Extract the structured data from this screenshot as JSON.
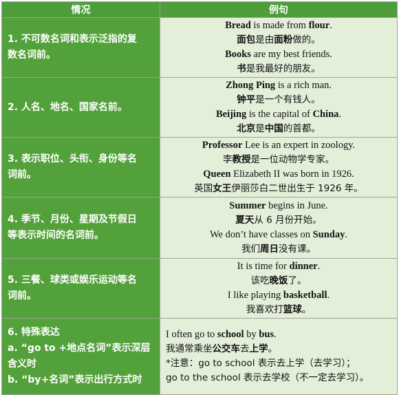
{
  "header": {
    "situation": "情况",
    "examples": "例句"
  },
  "rows": [
    {
      "situation": [
        "1. 不可数名词和表示泛指的复",
        "数名词前。"
      ],
      "lines": [
        [
          {
            "t": "Bread",
            "b": true
          },
          {
            "t": " is made from "
          },
          {
            "t": "flour",
            "b": true
          },
          {
            "t": "."
          }
        ],
        [
          {
            "t": "面包",
            "b": true
          },
          {
            "t": "是由"
          },
          {
            "t": "面粉",
            "b": true
          },
          {
            "t": "做的。"
          }
        ],
        [
          {
            "t": "Books",
            "b": true
          },
          {
            "t": " are my best friends."
          }
        ],
        [
          {
            "t": "书",
            "b": true
          },
          {
            "t": "是我最好的朋友。"
          }
        ]
      ]
    },
    {
      "situation": [
        "2. 人名、地名、国家名前。"
      ],
      "lines": [
        [
          {
            "t": "Zhong Ping",
            "b": true
          },
          {
            "t": " is a rich man."
          }
        ],
        [
          {
            "t": "钟平",
            "b": true
          },
          {
            "t": "是一个有钱人。"
          }
        ],
        [
          {
            "t": "Beijing",
            "b": true
          },
          {
            "t": " is the capital of "
          },
          {
            "t": "China",
            "b": true
          },
          {
            "t": "."
          }
        ],
        [
          {
            "t": "北京",
            "b": true
          },
          {
            "t": "是"
          },
          {
            "t": "中国",
            "b": true
          },
          {
            "t": "的首都。"
          }
        ]
      ]
    },
    {
      "situation": [
        "3. 表示职位、头衔、身份等名",
        "词前。"
      ],
      "lines": [
        [
          {
            "t": "Professor",
            "b": true
          },
          {
            "t": " Lee is an expert in zoology."
          }
        ],
        [
          {
            "t": "李"
          },
          {
            "t": "教授",
            "b": true
          },
          {
            "t": "是一位动物学专家。"
          }
        ],
        [
          {
            "t": "Queen",
            "b": true
          },
          {
            "t": " Elizabeth II was born in 1926."
          }
        ],
        [
          {
            "t": "英国"
          },
          {
            "t": "女王",
            "b": true
          },
          {
            "t": "伊丽莎白二世出生于 1926 年。"
          }
        ]
      ]
    },
    {
      "situation": [
        "4. 季节、月份、星期及节假日",
        "等表示时间的名词前。"
      ],
      "lines": [
        [
          {
            "t": "Summer",
            "b": true
          },
          {
            "t": " begins in June."
          }
        ],
        [
          {
            "t": "夏天",
            "b": true
          },
          {
            "t": "从 6 月份开始。"
          }
        ],
        [
          {
            "t": "We don’t have classes on "
          },
          {
            "t": "Sunday",
            "b": true
          },
          {
            "t": "."
          }
        ],
        [
          {
            "t": "我们"
          },
          {
            "t": "周日",
            "b": true
          },
          {
            "t": "没有课。"
          }
        ]
      ]
    },
    {
      "situation": [
        "5. 三餐、球类或娱乐运动等名",
        "词前。"
      ],
      "lines": [
        [
          {
            "t": "It is time for "
          },
          {
            "t": "dinner",
            "b": true
          },
          {
            "t": "."
          }
        ],
        [
          {
            "t": "该吃"
          },
          {
            "t": "晚饭",
            "b": true
          },
          {
            "t": "了。"
          }
        ],
        [
          {
            "t": "I like playing "
          },
          {
            "t": "basketball",
            "b": true
          },
          {
            "t": "."
          }
        ],
        [
          {
            "t": "我喜欢打"
          },
          {
            "t": "篮球",
            "b": true
          },
          {
            "t": "。"
          }
        ]
      ]
    },
    {
      "situation": [
        "6. 特殊表达",
        "a. “go to +地点名词”表示深层",
        "含义时",
        "b. “by+名词”表示出行方式时"
      ],
      "lines": [
        [
          {
            "t": "I often go to "
          },
          {
            "t": "school",
            "b": true
          },
          {
            "t": " by "
          },
          {
            "t": "bus",
            "b": true
          },
          {
            "t": "."
          }
        ],
        [
          {
            "t": "我通常乘坐"
          },
          {
            "t": "公交车",
            "b": true
          },
          {
            "t": "去"
          },
          {
            "t": "上学",
            "b": true
          },
          {
            "t": "。"
          }
        ],
        [
          {
            "t": "*注意：go to school 表示去上学（去学习）；"
          }
        ],
        [
          {
            "t": "go to the school 表示去学校（不一定去学习）。"
          }
        ]
      ]
    }
  ]
}
